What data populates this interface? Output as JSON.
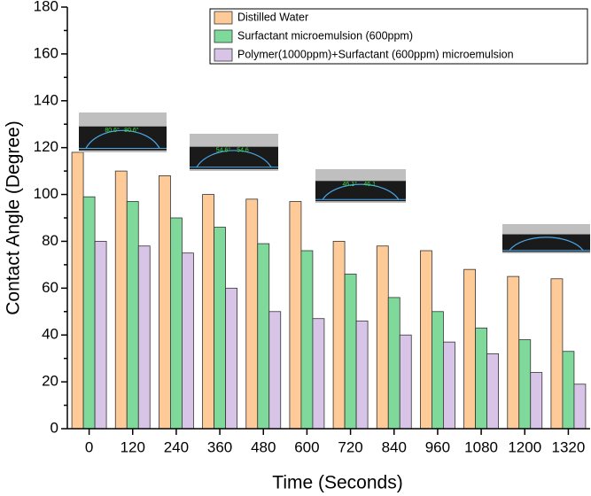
{
  "chart_data": {
    "type": "bar",
    "x_label": "Time (Seconds)",
    "y_label": "Contact Angle (Degree)",
    "categories": [
      "0",
      "120",
      "240",
      "360",
      "480",
      "600",
      "720",
      "840",
      "960",
      "1080",
      "1200",
      "1320"
    ],
    "series": [
      {
        "name": "Distilled Water",
        "color": "#fdca98",
        "values": [
          118,
          110,
          108,
          100,
          98,
          97,
          80,
          78,
          76,
          68,
          65,
          64
        ]
      },
      {
        "name": "Surfactant microemulsion  (600ppm)",
        "color": "#7fd99a",
        "values": [
          99,
          97,
          90,
          86,
          79,
          76,
          66,
          56,
          50,
          43,
          38,
          33
        ]
      },
      {
        "name": "Polymer(1000ppm)+Surfactant (600ppm) microemulsion",
        "color": "#d7c4e6",
        "values": [
          80,
          78,
          75,
          60,
          50,
          47,
          46,
          40,
          37,
          32,
          24,
          19
        ]
      }
    ],
    "ylim": [
      0,
      180
    ],
    "yticks": [
      0,
      20,
      40,
      60,
      80,
      100,
      120,
      140,
      160,
      180
    ],
    "legend": "top-right",
    "insets": [
      {
        "labels": [
          "80.6°",
          "80.6°"
        ]
      },
      {
        "labels": [
          "54.6°",
          "54.6"
        ]
      },
      {
        "labels": [
          "46.1°",
          "46.1"
        ]
      },
      {
        "labels": []
      }
    ]
  }
}
